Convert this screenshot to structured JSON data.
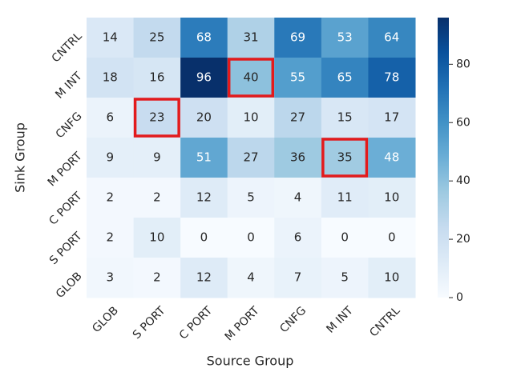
{
  "chart_data": {
    "type": "heatmap",
    "x_label": "Source Group",
    "y_label": "Sink Group",
    "x_categories": [
      "GLOB",
      "S PORT",
      "C PORT",
      "M PORT",
      "CNFG",
      "M INT",
      "CNTRL"
    ],
    "y_categories": [
      "CNTRL",
      "M INT",
      "CNFG",
      "M PORT",
      "C PORT",
      "S PORT",
      "GLOB"
    ],
    "values": [
      [
        14,
        25,
        68,
        31,
        69,
        53,
        64
      ],
      [
        18,
        16,
        96,
        40,
        55,
        65,
        78
      ],
      [
        6,
        23,
        20,
        10,
        27,
        15,
        17
      ],
      [
        9,
        9,
        51,
        27,
        36,
        35,
        48
      ],
      [
        2,
        2,
        12,
        5,
        4,
        11,
        10
      ],
      [
        2,
        10,
        0,
        0,
        6,
        0,
        0
      ],
      [
        3,
        2,
        12,
        4,
        7,
        5,
        10
      ]
    ],
    "colormap": "Blues",
    "vlim": [
      0,
      96
    ],
    "colorbar_ticks": [
      0,
      20,
      40,
      60,
      80
    ],
    "highlighted_cells": [
      [
        1,
        3
      ],
      [
        2,
        1
      ],
      [
        3,
        5
      ]
    ],
    "highlight_color": "#e31a1c"
  }
}
